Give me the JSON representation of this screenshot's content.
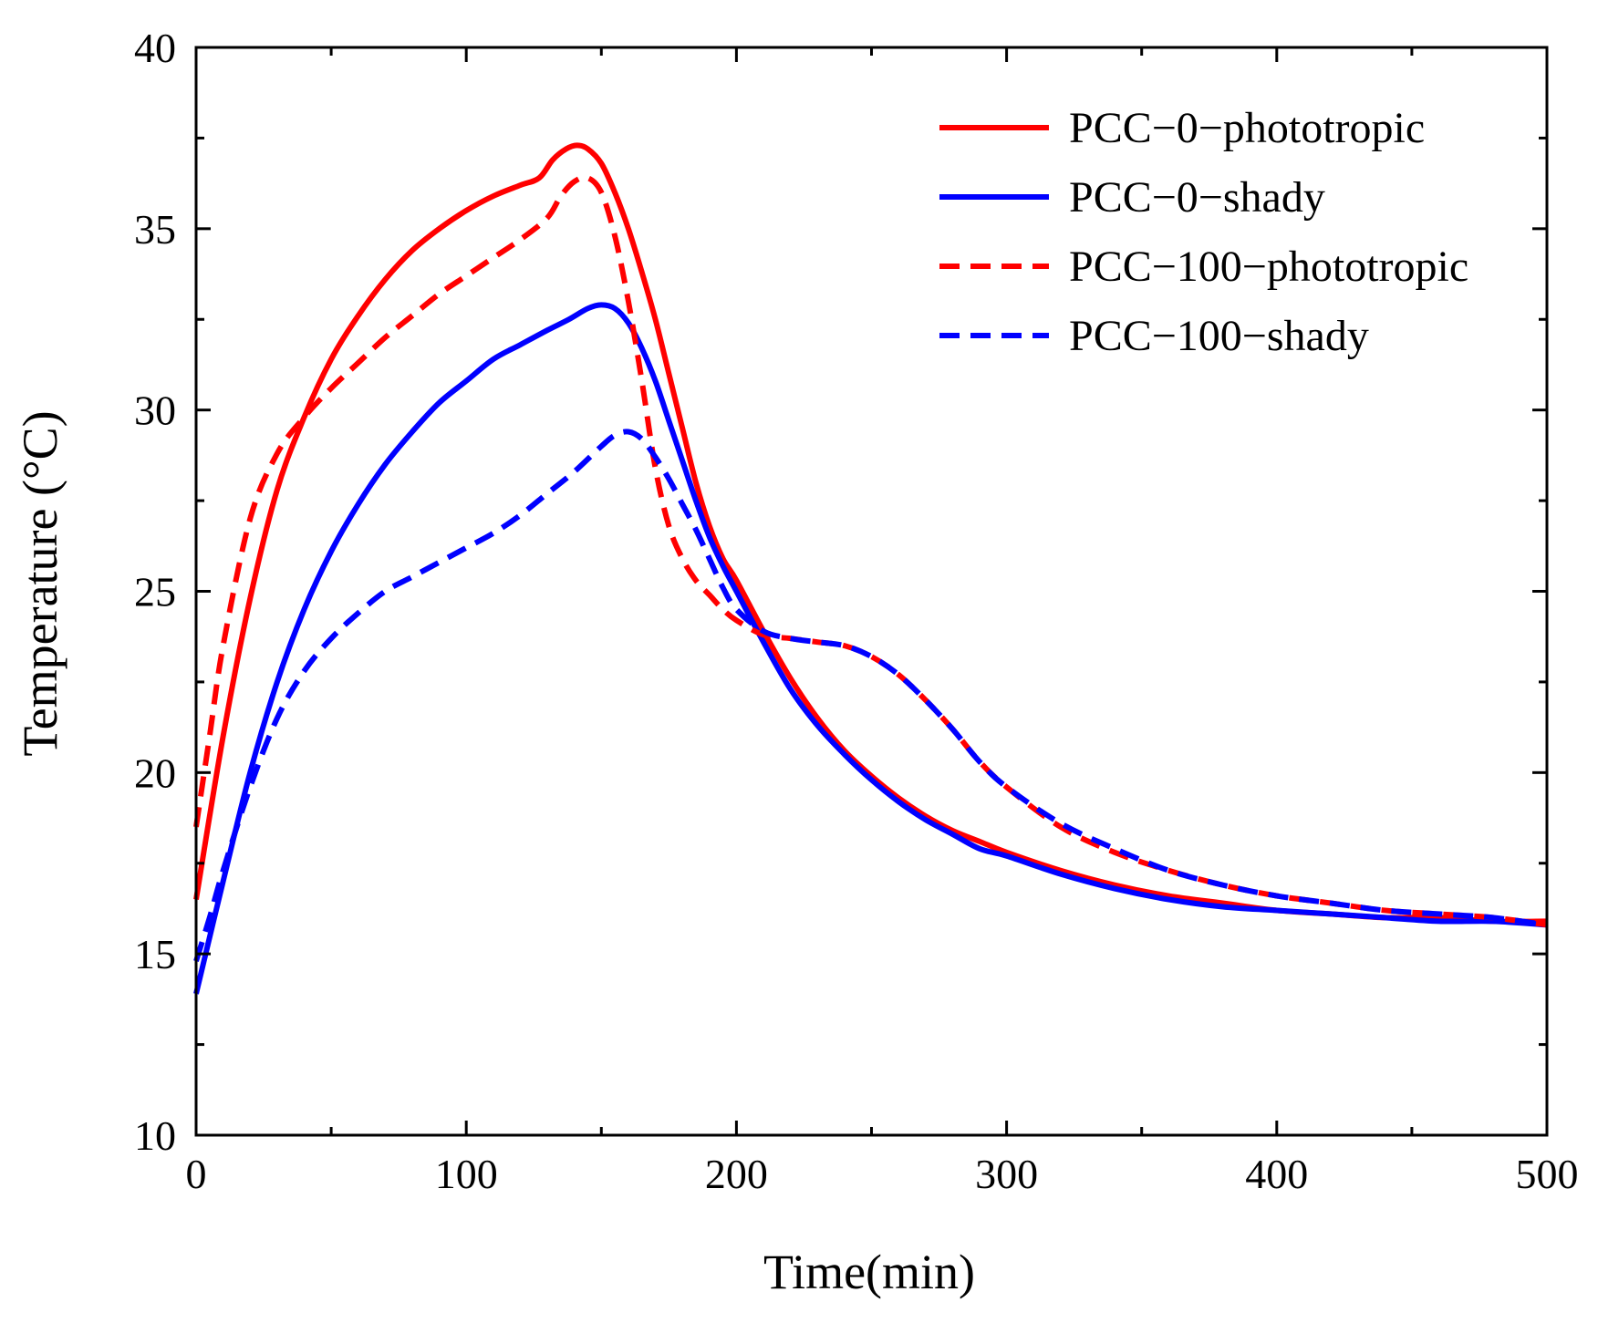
{
  "chart_data": {
    "type": "line",
    "title": "",
    "xlabel": "Time(min)",
    "ylabel": "Temperature (°C)",
    "xlim": [
      0,
      500
    ],
    "ylim": [
      10,
      40
    ],
    "xticks": [
      0,
      100,
      200,
      300,
      400,
      500
    ],
    "xtick_labels": [
      "0",
      "100",
      "200",
      "300",
      "400",
      "500"
    ],
    "yticks": [
      10,
      15,
      20,
      25,
      30,
      35,
      40
    ],
    "ytick_labels": [
      "10",
      "15",
      "20",
      "25",
      "30",
      "35",
      "40"
    ],
    "grid": false,
    "legend_position": "top-right",
    "series": [
      {
        "name": "PCC−0−phototropic",
        "key": "pcc-0-phototropic",
        "color": "#ff0000",
        "dashed": false,
        "x": [
          0,
          10,
          20,
          30,
          40,
          50,
          60,
          70,
          80,
          90,
          100,
          110,
          120,
          127,
          132,
          137,
          141,
          145,
          150,
          155,
          160,
          165,
          170,
          175,
          180,
          185,
          190,
          195,
          200,
          210,
          220,
          230,
          240,
          250,
          260,
          270,
          280,
          290,
          300,
          320,
          340,
          360,
          380,
          400,
          420,
          440,
          460,
          480,
          500
        ],
        "y": [
          16.5,
          21.0,
          24.8,
          27.8,
          29.8,
          31.4,
          32.6,
          33.6,
          34.4,
          35.0,
          35.5,
          35.9,
          36.2,
          36.4,
          36.9,
          37.2,
          37.3,
          37.2,
          36.8,
          36.0,
          35.0,
          33.8,
          32.5,
          31.0,
          29.5,
          28.0,
          26.8,
          25.9,
          25.3,
          23.9,
          22.6,
          21.5,
          20.6,
          19.9,
          19.3,
          18.8,
          18.4,
          18.1,
          17.8,
          17.3,
          16.9,
          16.6,
          16.4,
          16.2,
          16.1,
          16.0,
          16.0,
          15.9,
          15.9
        ]
      },
      {
        "name": "PCC−0−shady",
        "key": "pcc-0-shady",
        "color": "#0000ff",
        "dashed": false,
        "x": [
          0,
          10,
          20,
          30,
          40,
          50,
          60,
          70,
          80,
          90,
          100,
          110,
          120,
          130,
          138,
          145,
          150,
          155,
          160,
          165,
          170,
          175,
          180,
          185,
          190,
          195,
          200,
          210,
          220,
          230,
          240,
          250,
          260,
          270,
          280,
          290,
          300,
          320,
          340,
          360,
          380,
          400,
          420,
          440,
          460,
          480,
          500
        ],
        "y": [
          13.9,
          17.0,
          20.0,
          22.5,
          24.5,
          26.1,
          27.4,
          28.5,
          29.4,
          30.2,
          30.8,
          31.4,
          31.8,
          32.2,
          32.5,
          32.8,
          32.9,
          32.8,
          32.4,
          31.7,
          30.8,
          29.7,
          28.6,
          27.5,
          26.5,
          25.7,
          25.0,
          23.6,
          22.3,
          21.3,
          20.5,
          19.8,
          19.2,
          18.7,
          18.3,
          17.9,
          17.7,
          17.2,
          16.8,
          16.5,
          16.3,
          16.2,
          16.1,
          16.0,
          15.9,
          15.9,
          15.8
        ]
      },
      {
        "name": "PCC−100−phototropic",
        "key": "pcc-100-phototropic",
        "color": "#ff0000",
        "dashed": true,
        "x": [
          0,
          5,
          10,
          20,
          30,
          40,
          50,
          60,
          70,
          80,
          90,
          100,
          110,
          120,
          130,
          135,
          140,
          145,
          150,
          155,
          160,
          165,
          170,
          175,
          180,
          185,
          190,
          195,
          200,
          210,
          220,
          230,
          240,
          250,
          260,
          270,
          280,
          290,
          300,
          320,
          340,
          360,
          380,
          400,
          420,
          440,
          460,
          480,
          500
        ],
        "y": [
          18.5,
          21.0,
          23.5,
          27.0,
          28.8,
          29.8,
          30.6,
          31.3,
          32.0,
          32.6,
          33.2,
          33.7,
          34.2,
          34.7,
          35.3,
          35.9,
          36.3,
          36.4,
          36.0,
          34.8,
          33.0,
          30.8,
          28.4,
          26.8,
          25.9,
          25.3,
          24.9,
          24.5,
          24.2,
          23.8,
          23.7,
          23.6,
          23.5,
          23.2,
          22.7,
          22.0,
          21.2,
          20.3,
          19.6,
          18.5,
          17.8,
          17.3,
          16.9,
          16.6,
          16.4,
          16.2,
          16.1,
          16.0,
          15.8
        ]
      },
      {
        "name": "PCC−100−shady",
        "key": "pcc-100-shady",
        "color": "#0000ff",
        "dashed": true,
        "x": [
          0,
          5,
          10,
          20,
          30,
          40,
          50,
          60,
          70,
          80,
          90,
          100,
          110,
          120,
          130,
          140,
          150,
          155,
          160,
          165,
          170,
          175,
          180,
          185,
          190,
          195,
          200,
          210,
          220,
          230,
          240,
          250,
          260,
          270,
          280,
          290,
          300,
          320,
          340,
          360,
          380,
          400,
          420,
          440,
          460,
          480,
          500
        ],
        "y": [
          14.8,
          16.0,
          17.3,
          19.6,
          21.5,
          22.8,
          23.7,
          24.4,
          25.0,
          25.4,
          25.8,
          26.2,
          26.6,
          27.1,
          27.7,
          28.3,
          29.0,
          29.3,
          29.4,
          29.2,
          28.7,
          28.1,
          27.4,
          26.7,
          25.9,
          25.1,
          24.5,
          23.9,
          23.7,
          23.6,
          23.5,
          23.2,
          22.7,
          22.0,
          21.2,
          20.3,
          19.6,
          18.6,
          17.9,
          17.3,
          16.9,
          16.6,
          16.4,
          16.2,
          16.1,
          16.0,
          15.8
        ]
      }
    ]
  }
}
